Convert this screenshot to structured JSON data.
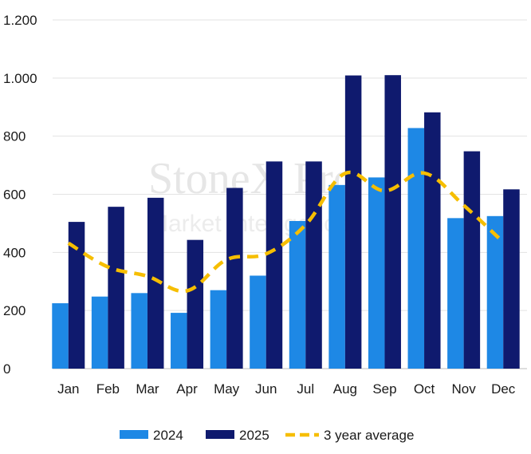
{
  "watermark": {
    "line1": "StoneX Pro",
    "line2": "Market Intelligence"
  },
  "chart_data": {
    "type": "bar",
    "categories": [
      "Jan",
      "Feb",
      "Mar",
      "Apr",
      "May",
      "Jun",
      "Jul",
      "Aug",
      "Sep",
      "Oct",
      "Nov",
      "Dec"
    ],
    "series": [
      {
        "name": "2024",
        "kind": "bar",
        "color": "#1e88e5",
        "values": [
          225,
          248,
          260,
          192,
          270,
          320,
          508,
          632,
          658,
          828,
          518,
          525
        ]
      },
      {
        "name": "2025",
        "kind": "bar",
        "color": "#0f1a6e",
        "values": [
          505,
          557,
          588,
          443,
          622,
          713,
          713,
          1009,
          1010,
          882,
          748,
          617
        ]
      },
      {
        "name": "3 year average",
        "kind": "line",
        "style": "dashed",
        "color": "#f6be00",
        "values": [
          432,
          350,
          318,
          268,
          375,
          395,
          495,
          672,
          612,
          673,
          562,
          435
        ]
      }
    ],
    "ylim": [
      0,
      1200
    ],
    "yticks": [
      0,
      200,
      400,
      600,
      800,
      1000,
      1200
    ],
    "ytick_labels": [
      "0",
      "200",
      "400",
      "600",
      "800",
      "1.000",
      "1.200"
    ],
    "xlabel": "",
    "ylabel": "",
    "title": "",
    "grid": "horizontal",
    "legend_position": "bottom-center"
  }
}
